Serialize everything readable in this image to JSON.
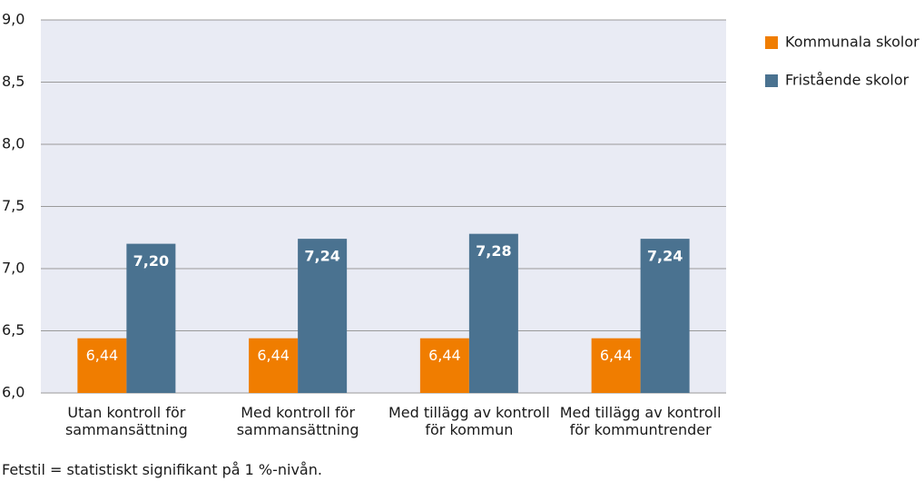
{
  "chart_data": {
    "type": "bar",
    "categories": [
      "Utan kontroll för sammansättning",
      "Med kontroll för sammansättning",
      "Med tillägg av kontroll för kommun",
      "Med tillägg av kontroll för kommuntrender"
    ],
    "series": [
      {
        "name": "Kommunala skolor",
        "color": "#f07d00",
        "values": [
          6.44,
          6.44,
          6.44,
          6.44
        ],
        "value_labels": [
          "6,44",
          "6,44",
          "6,44",
          "6,44"
        ]
      },
      {
        "name": "Fristående skolor",
        "color": "#4a7290",
        "values": [
          7.2,
          7.24,
          7.28,
          7.24
        ],
        "value_labels": [
          "7,20",
          "7,24",
          "7,28",
          "7,24"
        ]
      }
    ],
    "ylim": [
      6.0,
      9.0
    ],
    "yticks": [
      {
        "value": 6.0,
        "label": "6,0"
      },
      {
        "value": 6.5,
        "label": "6,5"
      },
      {
        "value": 7.0,
        "label": "7,0"
      },
      {
        "value": 7.5,
        "label": "7,5"
      },
      {
        "value": 8.0,
        "label": "8,0"
      },
      {
        "value": 8.5,
        "label": "8,5"
      },
      {
        "value": 9.0,
        "label": "9,0"
      }
    ],
    "grid": true,
    "legend": "right",
    "note": "Fetstil = statistiskt signifikant på 1 %-nivån."
  }
}
